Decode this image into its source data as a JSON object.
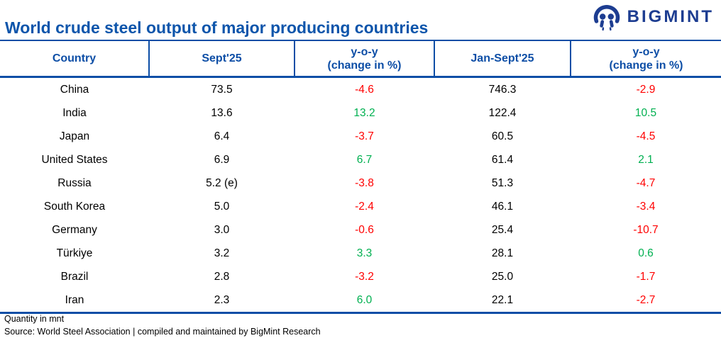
{
  "brand": {
    "name": "BIGMINT"
  },
  "title": "World crude steel output of major producing countries",
  "colors": {
    "accent_blue": "#0d4ea6",
    "title_blue": "#0d55ab",
    "logo_navy": "#1d3d91",
    "positive_green": "#00b050",
    "negative_red": "#ff0000"
  },
  "footer": {
    "quantity_note": "Quantity in mnt",
    "source_note": "Source: World Steel Association | compiled and maintained by BigMint Research"
  },
  "chart_data": {
    "type": "table",
    "title": "World crude steel output of major producing countries",
    "unit": "mnt",
    "columns": [
      "Country",
      "Sept'25",
      "y-o-y (change in %)",
      "Jan-Sept'25",
      "y-o-y (change in %)"
    ],
    "header_lines": [
      [
        "Country",
        ""
      ],
      [
        "Sept'25",
        ""
      ],
      [
        "y-o-y",
        "(change in %)"
      ],
      [
        "Jan-Sept'25",
        ""
      ],
      [
        "y-o-y",
        "(change in %)"
      ]
    ],
    "rows": [
      [
        "China",
        "73.5",
        "-4.6",
        "746.3",
        "-2.9"
      ],
      [
        "India",
        "13.6",
        "13.2",
        "122.4",
        "10.5"
      ],
      [
        "Japan",
        "6.4",
        "-3.7",
        "60.5",
        "-4.5"
      ],
      [
        "United States",
        "6.9",
        "6.7",
        "61.4",
        "2.1"
      ],
      [
        "Russia",
        "5.2 (e)",
        "-3.8",
        "51.3",
        "-4.7"
      ],
      [
        "South Korea",
        "5.0",
        "-2.4",
        "46.1",
        "-3.4"
      ],
      [
        "Germany",
        "3.0",
        "-0.6",
        "25.4",
        "-10.7"
      ],
      [
        "Türkiye",
        "3.2",
        "3.3",
        "28.1",
        "0.6"
      ],
      [
        "Brazil",
        "2.8",
        "-3.2",
        "25.0",
        "-1.7"
      ],
      [
        "Iran",
        "2.3",
        "6.0",
        "22.1",
        "-2.7"
      ]
    ]
  }
}
